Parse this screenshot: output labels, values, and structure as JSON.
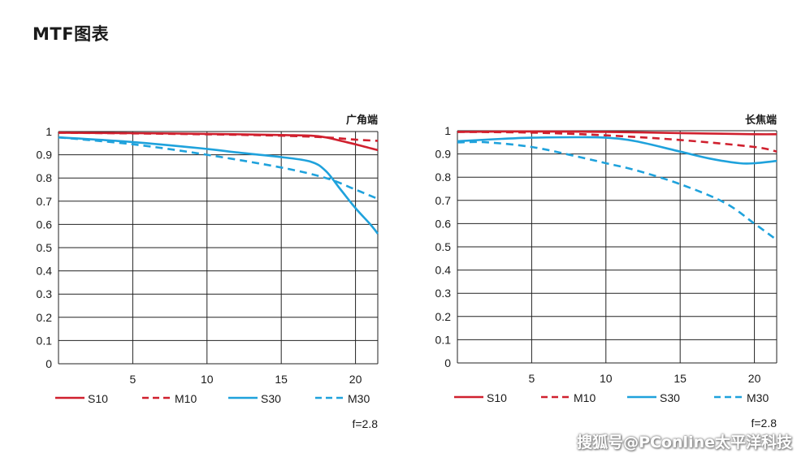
{
  "page": {
    "title": "MTF图表",
    "watermark": "搜狐号@PConline太平洋科技"
  },
  "colors": {
    "red": "#d0202e",
    "blue": "#1fa2dc",
    "grid": "#222222",
    "text": "#1a1a1a"
  },
  "chart_data": [
    {
      "type": "line",
      "title": "广角端",
      "note": "f=2.8",
      "xlim": [
        0,
        21.5
      ],
      "ylim": [
        0,
        1
      ],
      "x_ticks": [
        5,
        10,
        15,
        20
      ],
      "y_ticks": [
        0,
        0.1,
        0.2,
        0.3,
        0.4,
        0.5,
        0.6,
        0.7,
        0.8,
        0.9,
        1
      ],
      "y_tick_labels": [
        "0",
        "0.1",
        "0.2",
        "0.3",
        "0.4",
        "0.5",
        "0.6",
        "0.7",
        "0.8",
        "0.9",
        "1"
      ],
      "grid": true,
      "legend": "bottom",
      "series": [
        {
          "name": "S10",
          "color": "red",
          "dash": false,
          "x": [
            0,
            5,
            10,
            15,
            17,
            18,
            19,
            20,
            21.5
          ],
          "y": [
            0.995,
            0.993,
            0.99,
            0.985,
            0.982,
            0.975,
            0.96,
            0.945,
            0.92
          ]
        },
        {
          "name": "M10",
          "color": "red",
          "dash": true,
          "x": [
            0,
            5,
            10,
            15,
            18,
            20,
            21.5
          ],
          "y": [
            0.995,
            0.992,
            0.988,
            0.982,
            0.975,
            0.965,
            0.96
          ]
        },
        {
          "name": "S30",
          "color": "blue",
          "dash": false,
          "x": [
            0,
            5,
            10,
            12,
            15,
            17,
            18,
            19,
            20,
            21,
            21.5
          ],
          "y": [
            0.975,
            0.955,
            0.925,
            0.91,
            0.89,
            0.87,
            0.83,
            0.75,
            0.67,
            0.6,
            0.56
          ]
        },
        {
          "name": "M30",
          "color": "blue",
          "dash": true,
          "x": [
            0,
            5,
            10,
            15,
            18,
            20,
            21.5
          ],
          "y": [
            0.975,
            0.945,
            0.9,
            0.845,
            0.8,
            0.75,
            0.71
          ]
        }
      ]
    },
    {
      "type": "line",
      "title": "长焦端",
      "note": "f=2.8",
      "xlim": [
        0,
        21.5
      ],
      "ylim": [
        0,
        1
      ],
      "x_ticks": [
        5,
        10,
        15,
        20
      ],
      "y_ticks": [
        0,
        0.1,
        0.2,
        0.3,
        0.4,
        0.5,
        0.6,
        0.7,
        0.8,
        0.9,
        1
      ],
      "y_tick_labels": [
        "0",
        "0.1",
        "0.2",
        "0.3",
        "0.4",
        "0.5",
        "0.6",
        "0.7",
        "0.8",
        "0.9",
        "1"
      ],
      "grid": true,
      "legend": "bottom",
      "series": [
        {
          "name": "S10",
          "color": "red",
          "dash": false,
          "x": [
            0,
            5,
            10,
            15,
            20,
            21.5
          ],
          "y": [
            0.995,
            0.997,
            0.995,
            0.99,
            0.985,
            0.985
          ]
        },
        {
          "name": "M10",
          "color": "red",
          "dash": true,
          "x": [
            0,
            5,
            10,
            15,
            20,
            21.5
          ],
          "y": [
            0.995,
            0.992,
            0.98,
            0.96,
            0.93,
            0.91
          ]
        },
        {
          "name": "S30",
          "color": "blue",
          "dash": false,
          "x": [
            0,
            3,
            5,
            8,
            10,
            12,
            15,
            17,
            19,
            20,
            21.5
          ],
          "y": [
            0.955,
            0.965,
            0.97,
            0.972,
            0.97,
            0.955,
            0.91,
            0.88,
            0.86,
            0.86,
            0.87
          ]
        },
        {
          "name": "M30",
          "color": "blue",
          "dash": true,
          "x": [
            0,
            2,
            5,
            8,
            10,
            12,
            15,
            18,
            20,
            21.5
          ],
          "y": [
            0.95,
            0.95,
            0.93,
            0.89,
            0.86,
            0.83,
            0.77,
            0.69,
            0.6,
            0.53
          ]
        }
      ]
    }
  ]
}
